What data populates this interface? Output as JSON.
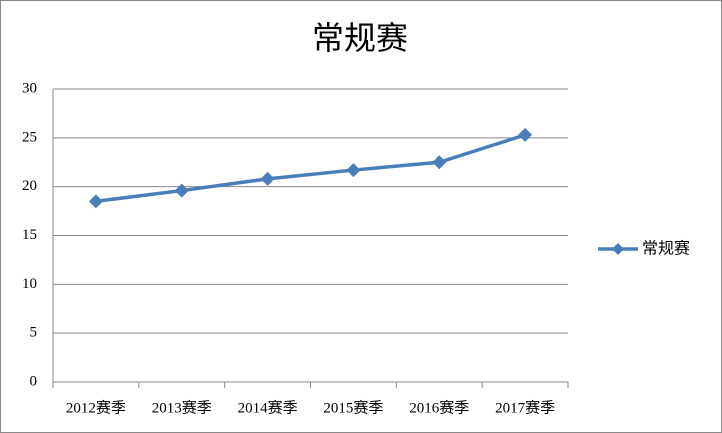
{
  "chart_data": {
    "type": "line",
    "title": "常规赛",
    "categories": [
      "2012赛季",
      "2013赛季",
      "2014赛季",
      "2015赛季",
      "2016赛季",
      "2017赛季"
    ],
    "series": [
      {
        "name": "常规赛",
        "color": "#4a7ebb",
        "values": [
          18.5,
          19.6,
          20.8,
          21.7,
          22.5,
          25.3
        ]
      }
    ],
    "ylim": [
      0,
      30
    ],
    "yticks": [
      0,
      5,
      10,
      15,
      20,
      25,
      30
    ],
    "grid": true,
    "legend": "right"
  }
}
